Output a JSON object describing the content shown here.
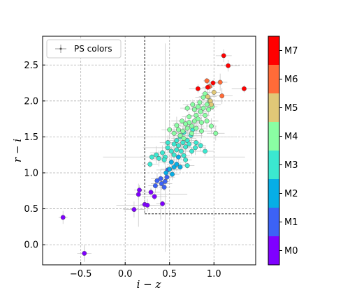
{
  "chart_data": {
    "type": "scatter",
    "title": "",
    "xlabel": "i − z",
    "ylabel": "r − i",
    "xlim": [
      -0.93,
      1.47
    ],
    "ylim": [
      -0.28,
      2.9
    ],
    "xticks": [
      -0.5,
      0.0,
      0.5,
      1.0
    ],
    "xtick_labels": [
      "−0.5",
      "0.0",
      "0.5",
      "1.0"
    ],
    "yticks": [
      0.0,
      0.5,
      1.0,
      1.5,
      2.0,
      2.5
    ],
    "ytick_labels": [
      "0.0",
      "0.5",
      "1.0",
      "1.5",
      "2.0",
      "2.5"
    ],
    "grid": true,
    "legend": {
      "position": "top-left",
      "entries": [
        "PS colors"
      ]
    },
    "selection_box": {
      "x_min": 0.22,
      "y_min": 0.43,
      "x_max": 1.47,
      "y_max": 2.9
    },
    "colorbar": {
      "labels": [
        "M0",
        "M1",
        "M2",
        "M3",
        "M4",
        "M5",
        "M6",
        "M7"
      ],
      "colors": [
        "#7f00ff",
        "#3c62f6",
        "#06aee6",
        "#3be8d0",
        "#8afea3",
        "#e0c877",
        "#ff6b38",
        "#ff0000"
      ]
    },
    "series": [
      {
        "class": 0,
        "points": [
          [
            -0.7,
            0.38
          ],
          [
            -0.46,
            -0.12
          ],
          [
            0.1,
            0.49
          ],
          [
            0.22,
            0.56
          ],
          [
            0.25,
            0.55
          ],
          [
            0.15,
            0.7
          ],
          [
            0.16,
            0.76
          ],
          [
            0.29,
            0.73
          ],
          [
            0.33,
            0.67
          ],
          [
            0.42,
            0.57
          ]
        ]
      },
      {
        "class": 1,
        "points": [
          [
            0.4,
            0.92
          ],
          [
            0.36,
            0.89
          ],
          [
            0.34,
            0.82
          ],
          [
            0.41,
            0.85
          ],
          [
            0.45,
            0.88
          ],
          [
            0.47,
            0.94
          ],
          [
            0.48,
            1.04
          ],
          [
            0.44,
            0.8
          ]
        ]
      },
      {
        "class": 2,
        "points": [
          [
            0.5,
            1.05
          ],
          [
            0.52,
            1.15
          ],
          [
            0.55,
            1.08
          ],
          [
            0.58,
            1.12
          ],
          [
            0.46,
            1.0
          ],
          [
            0.53,
            0.98
          ],
          [
            0.6,
            1.22
          ],
          [
            0.62,
            1.08
          ]
        ]
      },
      {
        "class": 3,
        "points": [
          [
            0.28,
            1.12
          ],
          [
            0.3,
            1.22
          ],
          [
            0.35,
            1.25
          ],
          [
            0.38,
            1.2
          ],
          [
            0.42,
            1.28
          ],
          [
            0.45,
            1.22
          ],
          [
            0.48,
            1.35
          ],
          [
            0.52,
            1.3
          ],
          [
            0.55,
            1.25
          ],
          [
            0.58,
            1.32
          ],
          [
            0.6,
            1.38
          ],
          [
            0.63,
            1.3
          ],
          [
            0.65,
            1.42
          ],
          [
            0.68,
            1.36
          ],
          [
            0.7,
            1.45
          ],
          [
            0.72,
            1.4
          ],
          [
            0.66,
            1.24
          ],
          [
            0.75,
            1.3
          ],
          [
            0.8,
            1.42
          ],
          [
            0.7,
            1.1
          ],
          [
            0.55,
            1.4
          ],
          [
            0.62,
            1.5
          ],
          [
            0.48,
            1.42
          ],
          [
            0.74,
            1.52
          ],
          [
            0.85,
            1.38
          ],
          [
            0.9,
            1.3
          ],
          [
            0.44,
            1.18
          ],
          [
            0.68,
            1.18
          ],
          [
            0.58,
            1.45
          ],
          [
            0.76,
            1.6
          ],
          [
            0.66,
            1.56
          ],
          [
            0.79,
            1.35
          ]
        ]
      },
      {
        "class": 4,
        "points": [
          [
            0.55,
            1.55
          ],
          [
            0.6,
            1.6
          ],
          [
            0.65,
            1.58
          ],
          [
            0.7,
            1.62
          ],
          [
            0.72,
            1.7
          ],
          [
            0.75,
            1.65
          ],
          [
            0.78,
            1.72
          ],
          [
            0.8,
            1.8
          ],
          [
            0.82,
            1.75
          ],
          [
            0.85,
            1.85
          ],
          [
            0.88,
            1.9
          ],
          [
            0.9,
            1.8
          ],
          [
            0.92,
            1.95
          ],
          [
            0.95,
            2.0
          ],
          [
            0.98,
            1.92
          ],
          [
            0.75,
            1.55
          ],
          [
            0.68,
            1.68
          ],
          [
            0.62,
            1.52
          ],
          [
            0.8,
            1.62
          ],
          [
            0.86,
            1.7
          ],
          [
            0.72,
            1.78
          ],
          [
            0.78,
            1.88
          ],
          [
            0.84,
            1.98
          ],
          [
            0.88,
            2.05
          ],
          [
            0.92,
            1.72
          ],
          [
            0.97,
            1.65
          ],
          [
            1.02,
            1.55
          ],
          [
            0.66,
            1.48
          ],
          [
            0.82,
            1.92
          ],
          [
            0.76,
            1.95
          ],
          [
            0.9,
            2.1
          ],
          [
            0.7,
            1.9
          ],
          [
            0.64,
            1.72
          ],
          [
            0.58,
            1.66
          ],
          [
            0.5,
            1.6
          ],
          [
            0.86,
            1.58
          ],
          [
            0.94,
            1.88
          ]
        ]
      },
      {
        "class": 5,
        "points": [
          [
            0.93,
            2.06
          ],
          [
            0.96,
            2.0
          ],
          [
            1.0,
            2.12
          ],
          [
            0.97,
            1.95
          ]
        ]
      },
      {
        "class": 6,
        "points": [
          [
            0.92,
            2.28
          ],
          [
            1.07,
            2.26
          ],
          [
            1.09,
            2.07
          ],
          [
            0.95,
            2.2
          ]
        ]
      },
      {
        "class": 7,
        "points": [
          [
            1.11,
            2.63
          ],
          [
            1.16,
            2.49
          ],
          [
            0.93,
            2.19
          ],
          [
            0.82,
            2.17
          ],
          [
            1.34,
            2.17
          ],
          [
            0.99,
            2.25
          ]
        ]
      }
    ]
  }
}
